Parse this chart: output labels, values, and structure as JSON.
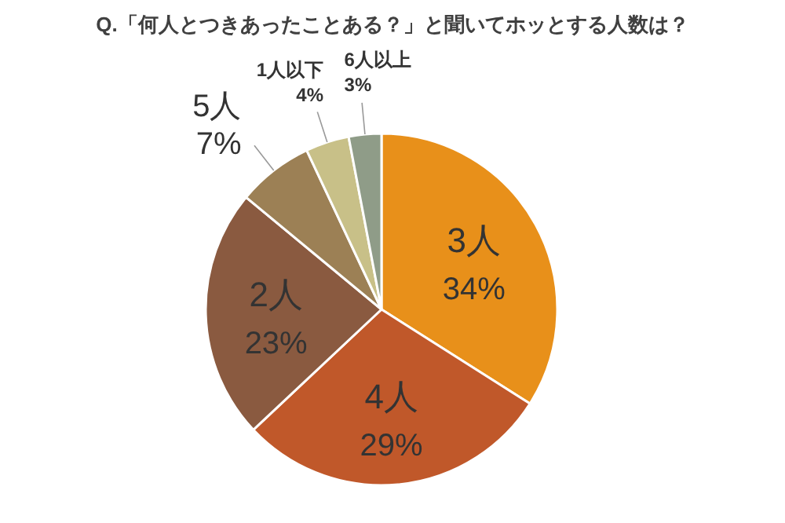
{
  "chart_data": {
    "type": "pie",
    "title": "Q.「何人とつきあったことある？」と聞いてホッとする人数は？",
    "categories": [
      "3人",
      "4人",
      "2人",
      "5人",
      "1人以下",
      "6人以上"
    ],
    "values": [
      34,
      29,
      23,
      7,
      4,
      3
    ],
    "value_labels": [
      "34%",
      "29%",
      "23%",
      "7%",
      "4%",
      "3%"
    ],
    "colors": [
      "#e8901a",
      "#c0582a",
      "#8a5a40",
      "#9c8055",
      "#c8c088",
      "#8f9c88"
    ]
  }
}
